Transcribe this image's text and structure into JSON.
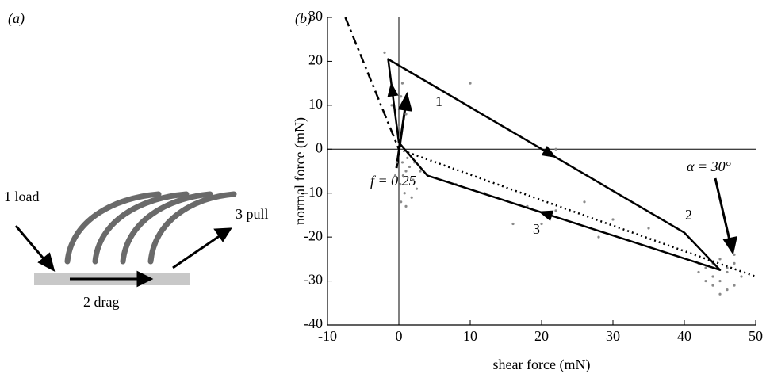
{
  "panel_a": {
    "label": "(a)",
    "steps": [
      "1 load",
      "2 drag",
      "3 pull"
    ]
  },
  "chart_data": {
    "type": "line",
    "panel_label": "(b)",
    "x_label": "shear force (mN)",
    "y_label": "normal force (mN)",
    "xlim": [
      -10,
      50
    ],
    "xticks": [
      -10,
      0,
      10,
      20,
      30,
      40,
      50
    ],
    "ylim": [
      -40,
      30
    ],
    "yticks": [
      -40,
      -30,
      -20,
      -10,
      0,
      10,
      20,
      30
    ],
    "zero_lines": true,
    "annotations": [
      "1",
      "2",
      "3",
      "f = 0.25",
      "α = 30°"
    ],
    "series": [
      {
        "style": "dots",
        "color": "#8a8a8a",
        "x": [
          0.5,
          1,
          0.2,
          1.5,
          2,
          0.8,
          -0.5,
          1.2,
          2.5,
          0.3,
          1.8,
          -0.3,
          0.6,
          3,
          1,
          2.2,
          0.5,
          -1,
          1,
          0,
          -2,
          0.3,
          8,
          12,
          18,
          22,
          26,
          30,
          35,
          16,
          20,
          28,
          10,
          22,
          43,
          44,
          45,
          46,
          47,
          44,
          42,
          46,
          45,
          48,
          43,
          47,
          44,
          46,
          45,
          42,
          47
        ],
        "values": [
          -3,
          -5,
          -8,
          -4,
          -7,
          -10,
          -6,
          -2,
          -9,
          -12,
          -11,
          -3,
          -6,
          -5,
          -13,
          -3,
          15,
          10,
          8,
          5,
          22,
          12,
          -8,
          -10,
          -13,
          -14,
          -12,
          -16,
          -18,
          -17,
          -17,
          -20,
          15,
          0,
          -27,
          -29,
          -30,
          -28,
          -26,
          -31,
          -28,
          -32,
          -25,
          -29,
          -30,
          -31,
          -26,
          -27,
          -33,
          -26,
          -24
        ]
      },
      {
        "style": "dashdot",
        "color": "#000000",
        "x": [
          -7.5,
          0
        ],
        "values": [
          30,
          0
        ]
      },
      {
        "style": "dotted",
        "color": "#000000",
        "x": [
          0,
          50
        ],
        "values": [
          0,
          -29
        ]
      },
      {
        "style": "solid",
        "color": "#000000",
        "x": [
          4,
          0,
          -1.5,
          40,
          45,
          4
        ],
        "values": [
          -6,
          1.5,
          20.5,
          -19,
          -27.5,
          -6
        ]
      }
    ]
  }
}
